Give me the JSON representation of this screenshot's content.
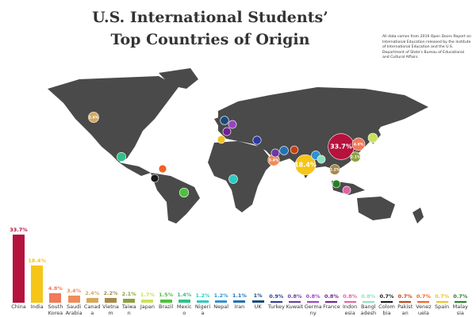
{
  "chart_data": {
    "type": "bar",
    "title": "U.S. International Students’ Top Countries of Origin",
    "note": "All data comes from 2019 Open Doors Report on International Education released by the Institute of International Education and the U.S. Department of State's Bureau of Educational and Cultural Affairs.",
    "categories": [
      "China",
      "India",
      "South Korea",
      "Saudi Arabia",
      "Canada",
      "Vietnam",
      "Taiwan",
      "Japan",
      "Brazil",
      "Mexico",
      "Nigeria",
      "Nepal",
      "Iran",
      "UK",
      "Turkey",
      "Kuwait",
      "Germany",
      "France",
      "Indonesia",
      "Bangladesh",
      "Colombia",
      "Pakistan",
      "Venezuela",
      "Spain",
      "Malaysia"
    ],
    "values": [
      33.7,
      18.4,
      4.8,
      3.4,
      2.4,
      2.2,
      2.1,
      1.7,
      1.5,
      1.4,
      1.2,
      1.2,
      1.1,
      1,
      0.9,
      0.8,
      0.8,
      0.8,
      0.8,
      0.8,
      0.7,
      0.7,
      0.7,
      0.7,
      0.7
    ],
    "value_labels": [
      "33.7%",
      "18.4%",
      "4.8%",
      "3.4%",
      "2.4%",
      "2.2%",
      "2.1%",
      "1.7%",
      "1.5%",
      "1.4%",
      "1.2%",
      "1.2%",
      "1.1%",
      "1%",
      "0.9%",
      "0.8%",
      "0.8%",
      "0.8%",
      "0.8%",
      "0.8%",
      "0.7%",
      "0.7%",
      "0.7%",
      "0.7%",
      "0.7%"
    ],
    "colors": [
      "#b5123e",
      "#f5c518",
      "#f07a5a",
      "#ef8c5a",
      "#d6a85c",
      "#a8884a",
      "#8ca23e",
      "#c9e25e",
      "#4cc23c",
      "#2fc28a",
      "#2fcac2",
      "#2f92d2",
      "#2272b2",
      "#1a4a7e",
      "#2a3aa2",
      "#6a3aa2",
      "#9a42c2",
      "#702092",
      "#e262a2",
      "#8ee2c2",
      "#1a1a1a",
      "#c24212",
      "#f26222",
      "#f2c222",
      "#228222"
    ]
  }
}
